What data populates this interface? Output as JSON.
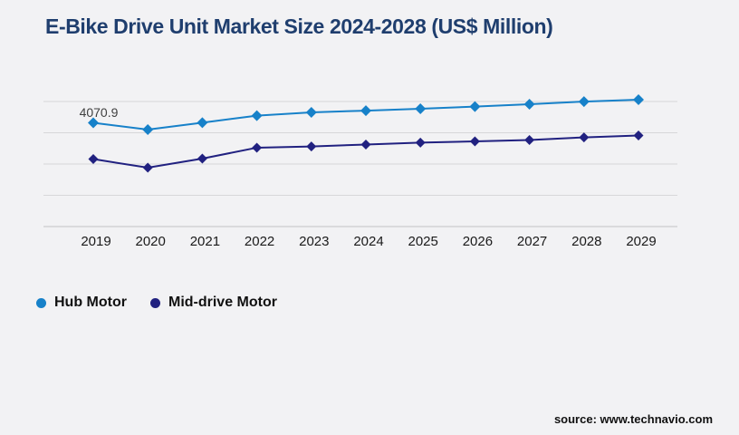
{
  "title": "E-Bike Drive Unit Market Size 2024-2028 (US$ Million)",
  "source": "source: www.technavio.com",
  "colors": {
    "hub": "#1781c9",
    "mid": "#212180",
    "title_text": "#1f3e6e",
    "background": "#f2f2f4",
    "gridline": "#d7d7d9",
    "axis": "#c2c2c4",
    "tick_text": "#1a1a1a",
    "point_label_text": "#404040"
  },
  "legend": {
    "items": [
      {
        "label": "Hub Motor",
        "color_key": "hub"
      },
      {
        "label": "Mid-drive Motor",
        "color_key": "mid"
      }
    ]
  },
  "chart_data": {
    "type": "line",
    "title": "E-Bike Drive Unit Market Size 2024-2028 (US$ Million)",
    "x": [
      2019,
      2020,
      2021,
      2022,
      2023,
      2024,
      2025,
      2026,
      2027,
      2028,
      2029
    ],
    "series": [
      {
        "name": "Hub Motor",
        "color_key": "hub",
        "marker": "diamond",
        "values": [
          4070.9,
          3855,
          4075,
          4300,
          4405,
          4460,
          4520,
          4590,
          4665,
          4750,
          4810
        ]
      },
      {
        "name": "Mid-drive Motor",
        "color_key": "mid",
        "marker": "diamond",
        "values": [
          2910,
          2635,
          2925,
          3275,
          3315,
          3375,
          3435,
          3475,
          3520,
          3605,
          3665
        ]
      }
    ],
    "point_labels": [
      {
        "series": "Hub Motor",
        "x": 2019,
        "text": "4070.9"
      }
    ],
    "xlabel": "",
    "ylabel": "",
    "y_axis_labels_visible": false,
    "grid": "horizontal",
    "legend_position": "bottom-left",
    "values_note": "Only the 2019 Hub Motor value (4070.9) is labeled on the chart; all other series values are estimated from gridline positions."
  }
}
